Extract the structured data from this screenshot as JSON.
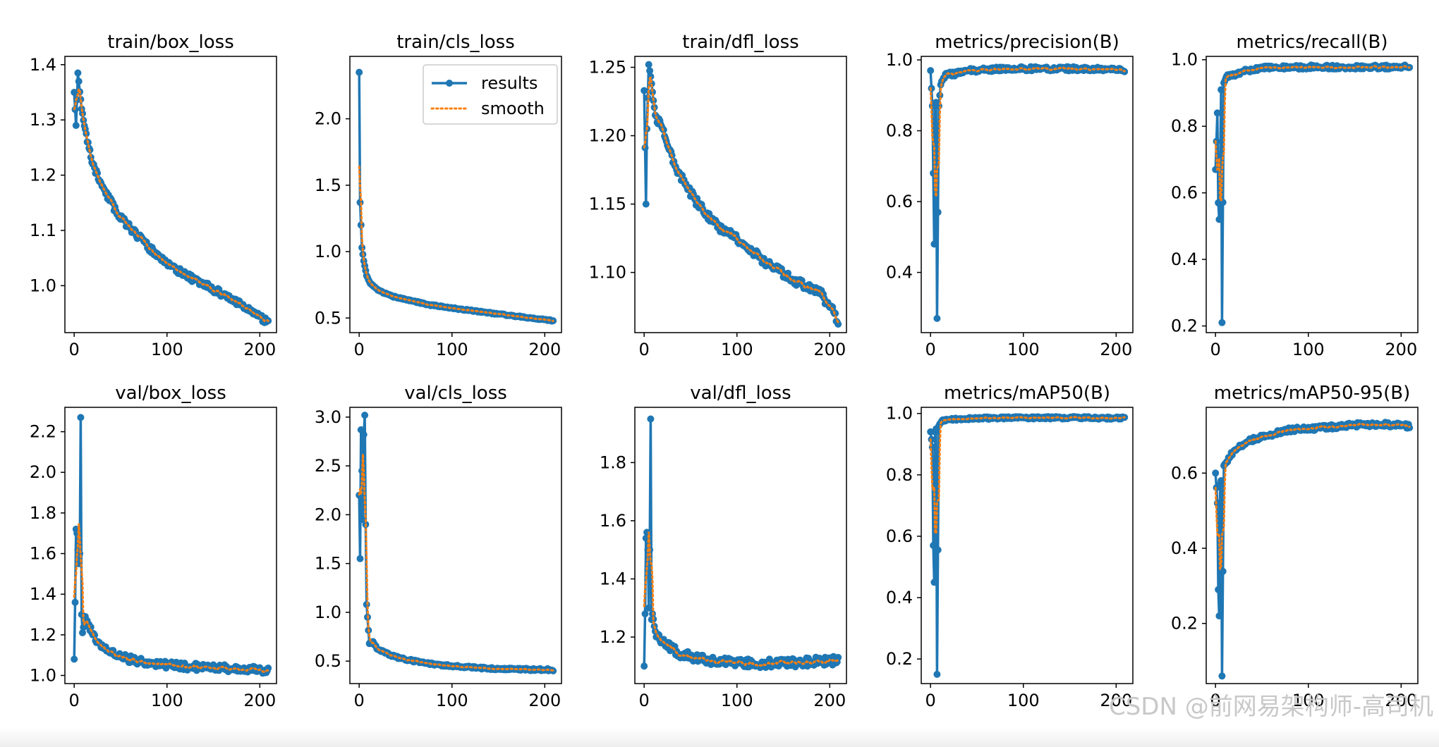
{
  "figure": {
    "legend": {
      "series": [
        "results",
        "smooth"
      ],
      "placement": "upper right of train/cls_loss"
    },
    "colors": {
      "results": "#1f77b4",
      "smooth": "#ff7f0e",
      "axes": "#000000",
      "background": "#ffffff"
    },
    "watermark": "CSDN @前网易架构师-高司机"
  },
  "chart_data": [
    {
      "type": "line",
      "title": "train/box_loss",
      "xlim": [
        -10,
        218
      ],
      "xticks": [
        0,
        100,
        200
      ],
      "ylim": [
        0.915,
        1.415
      ],
      "yticks": [
        1.0,
        1.1,
        1.2,
        1.3,
        1.4
      ],
      "decimals": 1,
      "n": 210,
      "seed": 11,
      "keys": [
        [
          0,
          1.35
        ],
        [
          2,
          1.29
        ],
        [
          4,
          1.385
        ],
        [
          8,
          1.32
        ],
        [
          14,
          1.26
        ],
        [
          20,
          1.22
        ],
        [
          30,
          1.18
        ],
        [
          45,
          1.135
        ],
        [
          60,
          1.105
        ],
        [
          80,
          1.07
        ],
        [
          100,
          1.04
        ],
        [
          130,
          1.01
        ],
        [
          160,
          0.985
        ],
        [
          185,
          0.96
        ],
        [
          200,
          0.945
        ],
        [
          210,
          0.93
        ]
      ],
      "noise": 0.006
    },
    {
      "type": "line",
      "title": "train/cls_loss",
      "xlim": [
        -10,
        218
      ],
      "xticks": [
        0,
        100,
        200
      ],
      "ylim": [
        0.39,
        2.47
      ],
      "yticks": [
        0.5,
        1.0,
        1.5,
        2.0
      ],
      "decimals": 1,
      "n": 210,
      "seed": 12,
      "keys": [
        [
          0,
          2.35
        ],
        [
          1,
          1.37
        ],
        [
          2,
          1.2
        ],
        [
          3,
          1.03
        ],
        [
          5,
          0.93
        ],
        [
          8,
          0.82
        ],
        [
          12,
          0.76
        ],
        [
          20,
          0.71
        ],
        [
          35,
          0.665
        ],
        [
          50,
          0.64
        ],
        [
          75,
          0.6
        ],
        [
          100,
          0.575
        ],
        [
          150,
          0.53
        ],
        [
          185,
          0.5
        ],
        [
          210,
          0.48
        ]
      ],
      "noise": 0.005
    },
    {
      "type": "line",
      "title": "train/dfl_loss",
      "xlim": [
        -10,
        218
      ],
      "xticks": [
        0,
        100,
        200
      ],
      "ylim": [
        1.056,
        1.258
      ],
      "yticks": [
        1.1,
        1.15,
        1.2,
        1.25
      ],
      "decimals": 2,
      "n": 210,
      "seed": 13,
      "keys": [
        [
          0,
          1.233
        ],
        [
          2,
          1.15
        ],
        [
          3,
          1.205
        ],
        [
          5,
          1.252
        ],
        [
          8,
          1.238
        ],
        [
          12,
          1.215
        ],
        [
          20,
          1.205
        ],
        [
          35,
          1.175
        ],
        [
          55,
          1.153
        ],
        [
          80,
          1.133
        ],
        [
          100,
          1.125
        ],
        [
          130,
          1.108
        ],
        [
          160,
          1.095
        ],
        [
          190,
          1.085
        ],
        [
          205,
          1.07
        ],
        [
          210,
          1.063
        ]
      ],
      "noise": 0.003
    },
    {
      "type": "line",
      "title": "metrics/precision(B)",
      "xlim": [
        -10,
        218
      ],
      "xticks": [
        0,
        100,
        200
      ],
      "ylim": [
        0.23,
        1.01
      ],
      "yticks": [
        0.4,
        0.6,
        0.8,
        1.0
      ],
      "decimals": 1,
      "n": 210,
      "seed": 14,
      "keys": [
        [
          0,
          0.97
        ],
        [
          2,
          0.87
        ],
        [
          3,
          0.68
        ],
        [
          4,
          0.48
        ],
        [
          5,
          0.87
        ],
        [
          6,
          0.88
        ],
        [
          7,
          0.27
        ],
        [
          9,
          0.87
        ],
        [
          11,
          0.93
        ],
        [
          16,
          0.96
        ],
        [
          25,
          0.96
        ],
        [
          40,
          0.97
        ],
        [
          80,
          0.975
        ],
        [
          150,
          0.975
        ],
        [
          210,
          0.972
        ]
      ],
      "noise": 0.006
    },
    {
      "type": "line",
      "title": "metrics/recall(B)",
      "xlim": [
        -10,
        218
      ],
      "xticks": [
        0,
        100,
        200
      ],
      "ylim": [
        0.18,
        1.01
      ],
      "yticks": [
        0.2,
        0.4,
        0.6,
        0.8,
        1.0
      ],
      "decimals": 1,
      "n": 210,
      "seed": 15,
      "keys": [
        [
          0,
          0.67
        ],
        [
          2,
          0.84
        ],
        [
          3,
          0.57
        ],
        [
          4,
          0.52
        ],
        [
          5,
          0.68
        ],
        [
          6,
          0.91
        ],
        [
          7,
          0.21
        ],
        [
          9,
          0.93
        ],
        [
          12,
          0.95
        ],
        [
          20,
          0.955
        ],
        [
          30,
          0.965
        ],
        [
          50,
          0.975
        ],
        [
          100,
          0.978
        ],
        [
          150,
          0.978
        ],
        [
          210,
          0.978
        ]
      ],
      "noise": 0.006
    },
    {
      "type": "line",
      "title": "val/box_loss",
      "xlim": [
        -10,
        218
      ],
      "xticks": [
        0,
        100,
        200
      ],
      "ylim": [
        0.96,
        2.32
      ],
      "yticks": [
        1.0,
        1.2,
        1.4,
        1.6,
        1.8,
        2.0,
        2.2
      ],
      "decimals": 1,
      "n": 210,
      "seed": 16,
      "keys": [
        [
          0,
          1.08
        ],
        [
          1,
          1.36
        ],
        [
          2,
          1.72
        ],
        [
          3,
          1.7
        ],
        [
          4,
          1.62
        ],
        [
          5,
          1.55
        ],
        [
          6,
          1.6
        ],
        [
          7,
          2.27
        ],
        [
          8,
          1.3
        ],
        [
          9,
          1.21
        ],
        [
          12,
          1.29
        ],
        [
          20,
          1.2
        ],
        [
          35,
          1.12
        ],
        [
          50,
          1.09
        ],
        [
          80,
          1.06
        ],
        [
          120,
          1.045
        ],
        [
          160,
          1.035
        ],
        [
          210,
          1.025
        ]
      ],
      "noise": 0.018
    },
    {
      "type": "line",
      "title": "val/cls_loss",
      "xlim": [
        -10,
        218
      ],
      "xticks": [
        0,
        100,
        200
      ],
      "ylim": [
        0.27,
        3.1
      ],
      "yticks": [
        0.5,
        1.0,
        1.5,
        2.0,
        2.5,
        3.0
      ],
      "decimals": 1,
      "n": 210,
      "seed": 17,
      "keys": [
        [
          0,
          2.2
        ],
        [
          1,
          1.55
        ],
        [
          2,
          2.87
        ],
        [
          3,
          2.45
        ],
        [
          4,
          1.95
        ],
        [
          5,
          2.82
        ],
        [
          6,
          3.02
        ],
        [
          7,
          1.9
        ],
        [
          8,
          1.08
        ],
        [
          9,
          0.95
        ],
        [
          11,
          0.68
        ],
        [
          15,
          0.7
        ],
        [
          20,
          0.62
        ],
        [
          40,
          0.54
        ],
        [
          70,
          0.48
        ],
        [
          100,
          0.45
        ],
        [
          150,
          0.42
        ],
        [
          210,
          0.41
        ]
      ],
      "noise": 0.012
    },
    {
      "type": "line",
      "title": "val/dfl_loss",
      "xlim": [
        -10,
        218
      ],
      "xticks": [
        0,
        100,
        200
      ],
      "ylim": [
        1.04,
        1.99
      ],
      "yticks": [
        1.2,
        1.4,
        1.6,
        1.8
      ],
      "decimals": 1,
      "n": 210,
      "seed": 18,
      "keys": [
        [
          0,
          1.1
        ],
        [
          1,
          1.28
        ],
        [
          2,
          1.54
        ],
        [
          3,
          1.56
        ],
        [
          4,
          1.5
        ],
        [
          5,
          1.3
        ],
        [
          6,
          1.5
        ],
        [
          7,
          1.95
        ],
        [
          8,
          1.26
        ],
        [
          9,
          1.28
        ],
        [
          12,
          1.22
        ],
        [
          20,
          1.18
        ],
        [
          40,
          1.14
        ],
        [
          70,
          1.12
        ],
        [
          100,
          1.11
        ],
        [
          150,
          1.11
        ],
        [
          210,
          1.12
        ]
      ],
      "noise": 0.015
    },
    {
      "type": "line",
      "title": "metrics/mAP50(B)",
      "xlim": [
        -10,
        218
      ],
      "xticks": [
        0,
        100,
        200
      ],
      "ylim": [
        0.12,
        1.02
      ],
      "yticks": [
        0.2,
        0.4,
        0.6,
        0.8,
        1.0
      ],
      "decimals": 1,
      "n": 210,
      "seed": 19,
      "keys": [
        [
          0,
          0.94
        ],
        [
          2,
          0.89
        ],
        [
          3,
          0.57
        ],
        [
          4,
          0.45
        ],
        [
          5,
          0.94
        ],
        [
          6,
          0.95
        ],
        [
          7,
          0.15
        ],
        [
          9,
          0.96
        ],
        [
          12,
          0.975
        ],
        [
          20,
          0.98
        ],
        [
          30,
          0.982
        ],
        [
          60,
          0.985
        ],
        [
          100,
          0.986
        ],
        [
          150,
          0.986
        ],
        [
          210,
          0.985
        ]
      ],
      "noise": 0.004
    },
    {
      "type": "line",
      "title": "metrics/mAP50-95(B)",
      "xlim": [
        -10,
        218
      ],
      "xticks": [
        0,
        100,
        200
      ],
      "ylim": [
        0.04,
        0.775
      ],
      "yticks": [
        0.2,
        0.4,
        0.6
      ],
      "decimals": 1,
      "n": 210,
      "seed": 20,
      "keys": [
        [
          0,
          0.6
        ],
        [
          2,
          0.52
        ],
        [
          3,
          0.29
        ],
        [
          4,
          0.22
        ],
        [
          5,
          0.57
        ],
        [
          6,
          0.58
        ],
        [
          7,
          0.06
        ],
        [
          9,
          0.62
        ],
        [
          12,
          0.63
        ],
        [
          20,
          0.66
        ],
        [
          35,
          0.685
        ],
        [
          55,
          0.7
        ],
        [
          80,
          0.715
        ],
        [
          110,
          0.72
        ],
        [
          150,
          0.728
        ],
        [
          180,
          0.73
        ],
        [
          210,
          0.725
        ]
      ],
      "noise": 0.006
    }
  ]
}
